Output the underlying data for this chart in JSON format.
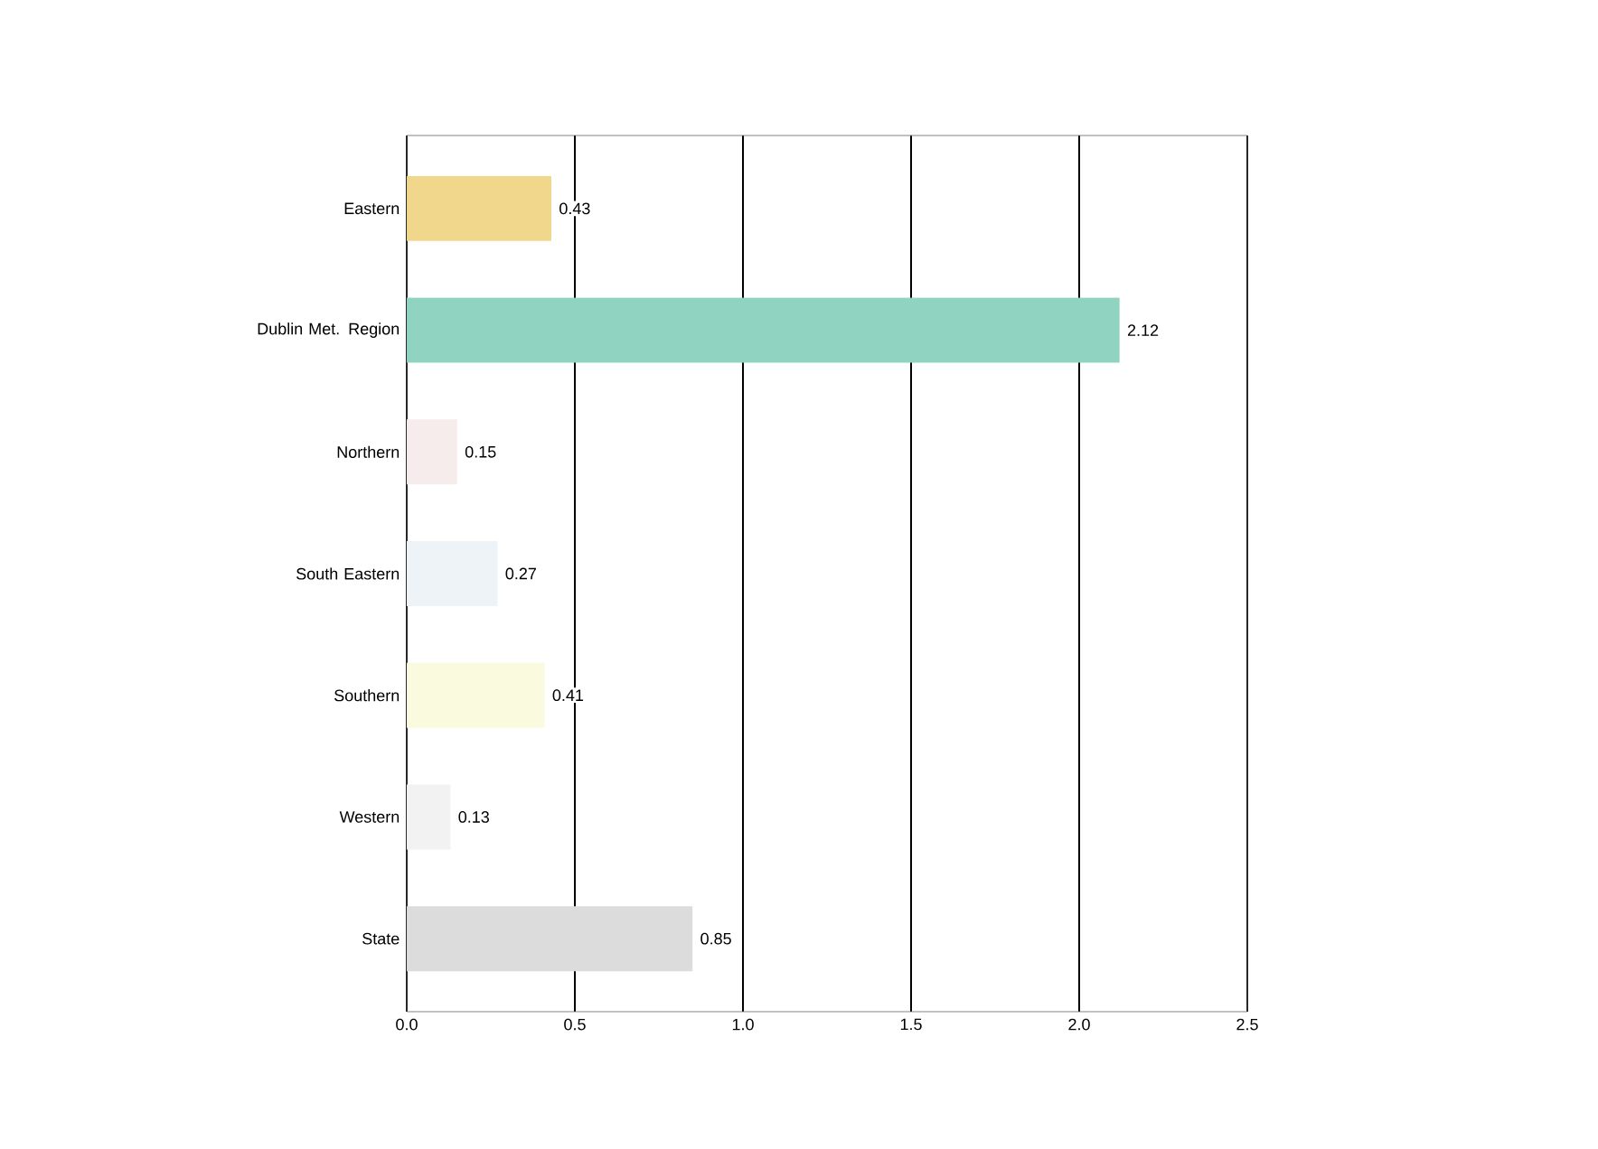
{
  "chart_data": {
    "type": "bar",
    "orientation": "horizontal",
    "categories": [
      "Eastern",
      "Dublin Met. Region",
      "Northern",
      "South Eastern",
      "Southern",
      "Western",
      "State"
    ],
    "values": [
      0.43,
      2.12,
      0.15,
      0.27,
      0.41,
      0.13,
      0.85
    ],
    "colors": [
      "#f0d78c",
      "#8fd3c0",
      "#f7ecec",
      "#eef3f7",
      "#fafade",
      "#f2f2f2",
      "#dcdcdc"
    ],
    "xlim": [
      0,
      2.5
    ],
    "xticks": [
      {
        "value": 0,
        "label": "0.0"
      },
      {
        "value": 0.5,
        "label": "0.5"
      },
      {
        "value": 1,
        "label": "1.0"
      },
      {
        "value": 1.5,
        "label": "1.5"
      },
      {
        "value": 2,
        "label": "2.0"
      },
      {
        "value": 2.5,
        "label": "2.5"
      }
    ],
    "grid": "x",
    "data_labels": true
  }
}
